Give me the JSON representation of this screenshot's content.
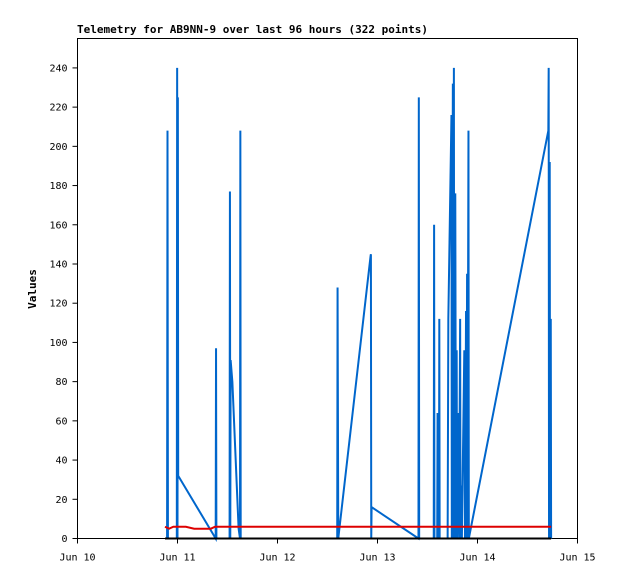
{
  "chart_data": {
    "type": "line",
    "title": "Telemetry for AB9NN-9 over last 96 hours (322 points)",
    "xlabel": "",
    "ylabel": "Values",
    "xlim": [
      "2024-06-10T00:00",
      "2024-06-15T00:00"
    ],
    "ylim": [
      0,
      255
    ],
    "x_tick_labels": [
      "Jun 10",
      "Jun 11",
      "Jun 12",
      "Jun 13",
      "Jun 14",
      "Jun 15"
    ],
    "y_ticks": [
      0,
      20,
      40,
      60,
      80,
      100,
      120,
      140,
      160,
      180,
      200,
      220,
      240
    ],
    "grid": false,
    "series": [
      {
        "color": "#0066cc",
        "points": [
          [
            "2024-06-10T21:30",
            0
          ],
          [
            "2024-06-10T21:36",
            208
          ],
          [
            "2024-06-10T21:42",
            0
          ],
          [
            "2024-06-10T23:50",
            0
          ],
          [
            "2024-06-10T23:55",
            240
          ],
          [
            "2024-06-11T00:00",
            0
          ],
          [
            "2024-06-11T00:05",
            225
          ],
          [
            "2024-06-11T00:10",
            32
          ],
          [
            "2024-06-11T09:10",
            0
          ],
          [
            "2024-06-11T09:15",
            97
          ],
          [
            "2024-06-11T09:20",
            0
          ],
          [
            "2024-06-11T12:30",
            0
          ],
          [
            "2024-06-11T12:35",
            177
          ],
          [
            "2024-06-11T12:40",
            0
          ],
          [
            "2024-06-11T12:45",
            91
          ],
          [
            "2024-06-11T13:10",
            80
          ],
          [
            "2024-06-11T14:40",
            5
          ],
          [
            "2024-06-11T15:00",
            0
          ],
          [
            "2024-06-11T15:05",
            208
          ],
          [
            "2024-06-11T15:10",
            0
          ],
          [
            "2024-06-12T14:20",
            0
          ],
          [
            "2024-06-12T14:25",
            128
          ],
          [
            "2024-06-12T14:30",
            64
          ],
          [
            "2024-06-12T14:35",
            0
          ],
          [
            "2024-06-12T22:20",
            144
          ],
          [
            "2024-06-12T22:25",
            145
          ],
          [
            "2024-06-12T22:30",
            0
          ],
          [
            "2024-06-12T22:35",
            16
          ],
          [
            "2024-06-13T09:50",
            0
          ],
          [
            "2024-06-13T09:55",
            225
          ],
          [
            "2024-06-13T10:00",
            0
          ],
          [
            "2024-06-13T13:30",
            0
          ],
          [
            "2024-06-13T13:35",
            160
          ],
          [
            "2024-06-13T13:40",
            0
          ],
          [
            "2024-06-13T14:20",
            0
          ],
          [
            "2024-06-13T14:25",
            64
          ],
          [
            "2024-06-13T14:30",
            0
          ],
          [
            "2024-06-13T14:45",
            0
          ],
          [
            "2024-06-13T14:50",
            112
          ],
          [
            "2024-06-13T14:55",
            0
          ],
          [
            "2024-06-13T16:50",
            0
          ],
          [
            "2024-06-13T17:00",
            112
          ],
          [
            "2024-06-13T17:45",
            216
          ],
          [
            "2024-06-13T17:50",
            0
          ],
          [
            "2024-06-13T18:05",
            232
          ],
          [
            "2024-06-13T18:10",
            0
          ],
          [
            "2024-06-13T18:20",
            240
          ],
          [
            "2024-06-13T18:25",
            0
          ],
          [
            "2024-06-13T18:40",
            176
          ],
          [
            "2024-06-13T18:50",
            0
          ],
          [
            "2024-06-13T19:00",
            96
          ],
          [
            "2024-06-13T19:05",
            0
          ],
          [
            "2024-06-13T19:30",
            64
          ],
          [
            "2024-06-13T19:35",
            0
          ],
          [
            "2024-06-13T19:50",
            112
          ],
          [
            "2024-06-13T19:55",
            0
          ],
          [
            "2024-06-13T20:10",
            27
          ],
          [
            "2024-06-13T20:15",
            0
          ],
          [
            "2024-06-13T20:50",
            96
          ],
          [
            "2024-06-13T21:00",
            0
          ],
          [
            "2024-06-13T21:15",
            116
          ],
          [
            "2024-06-13T21:20",
            0
          ],
          [
            "2024-06-13T21:30",
            135
          ],
          [
            "2024-06-13T21:35",
            0
          ],
          [
            "2024-06-13T21:50",
            208
          ],
          [
            "2024-06-13T21:55",
            0
          ],
          [
            "2024-06-14T17:00",
            208
          ],
          [
            "2024-06-14T17:05",
            240
          ],
          [
            "2024-06-14T17:10",
            0
          ],
          [
            "2024-06-14T17:20",
            192
          ],
          [
            "2024-06-14T17:25",
            0
          ],
          [
            "2024-06-14T17:35",
            112
          ],
          [
            "2024-06-14T17:40",
            0
          ]
        ]
      },
      {
        "color": "#dd0000",
        "points": [
          [
            "2024-06-10T21:00",
            6
          ],
          [
            "2024-06-10T22:00",
            5
          ],
          [
            "2024-06-10T23:00",
            6
          ],
          [
            "2024-06-11T00:00",
            6
          ],
          [
            "2024-06-11T02:00",
            6
          ],
          [
            "2024-06-11T04:00",
            5
          ],
          [
            "2024-06-11T06:00",
            5
          ],
          [
            "2024-06-11T08:00",
            5
          ],
          [
            "2024-06-11T09:00",
            6
          ],
          [
            "2024-06-11T12:00",
            6
          ],
          [
            "2024-06-12T00:00",
            6
          ],
          [
            "2024-06-13T00:00",
            6
          ],
          [
            "2024-06-14T00:00",
            6
          ],
          [
            "2024-06-14T17:40",
            6
          ]
        ]
      },
      {
        "color": "#000000",
        "points": [
          [
            "2024-06-10T21:00",
            0
          ],
          [
            "2024-06-14T17:40",
            0
          ]
        ]
      }
    ]
  }
}
